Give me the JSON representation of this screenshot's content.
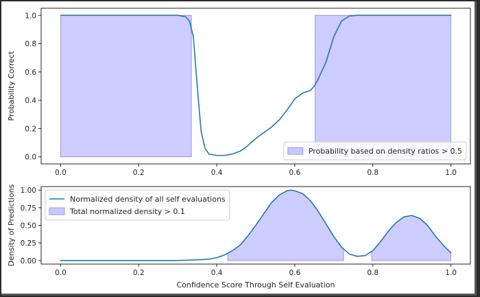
{
  "chart_data": [
    {
      "type": "line",
      "ylabel": "Probability Correct",
      "xlim": [
        -0.05,
        1.05
      ],
      "ylim": [
        -0.05,
        1.05
      ],
      "x_ticks": [
        0.0,
        0.2,
        0.4,
        0.6,
        0.8,
        1.0
      ],
      "x_tick_labels": [
        "0.0",
        "0.2",
        "0.4",
        "0.6",
        "0.8",
        "1.0"
      ],
      "y_ticks": [
        0.0,
        0.2,
        0.4,
        0.6,
        0.8,
        1.0
      ],
      "y_tick_labels": [
        "0.0",
        "0.2",
        "0.4",
        "0.6",
        "0.8",
        "1.0"
      ],
      "legend": {
        "position": "lower-right",
        "entries": [
          {
            "label": "Probability based on density ratios > 0.5",
            "kind": "fill"
          }
        ]
      },
      "series": [
        {
          "name": "Probability correct",
          "color": "#1f77b4",
          "x": [
            0.0,
            0.05,
            0.1,
            0.15,
            0.2,
            0.25,
            0.3,
            0.32,
            0.33,
            0.34,
            0.35,
            0.36,
            0.37,
            0.38,
            0.4,
            0.42,
            0.44,
            0.46,
            0.48,
            0.5,
            0.52,
            0.54,
            0.56,
            0.58,
            0.6,
            0.62,
            0.64,
            0.65,
            0.66,
            0.68,
            0.7,
            0.72,
            0.74,
            0.76,
            0.8,
            0.9,
            1.0
          ],
          "y": [
            1.0,
            1.0,
            1.0,
            1.0,
            1.0,
            1.0,
            1.0,
            0.99,
            0.96,
            0.85,
            0.5,
            0.18,
            0.06,
            0.02,
            0.01,
            0.01,
            0.02,
            0.04,
            0.08,
            0.13,
            0.17,
            0.21,
            0.26,
            0.33,
            0.41,
            0.45,
            0.47,
            0.5,
            0.55,
            0.67,
            0.85,
            0.96,
            0.995,
            1.0,
            1.0,
            1.0,
            1.0
          ]
        }
      ],
      "fills": [
        {
          "name": "Probability based on density ratios > 0.5",
          "color": "#c8c8ff",
          "x_ranges": [
            [
              0.0,
              0.335
            ],
            [
              0.652,
              1.0
            ]
          ]
        }
      ]
    },
    {
      "type": "line",
      "xlabel": "Confidence Score Through Self Evaluation",
      "ylabel": "Density of Predictions",
      "xlim": [
        -0.05,
        1.05
      ],
      "ylim": [
        -0.05,
        1.05
      ],
      "x_ticks": [
        0.0,
        0.2,
        0.4,
        0.6,
        0.8,
        1.0
      ],
      "x_tick_labels": [
        "0.0",
        "0.2",
        "0.4",
        "0.6",
        "0.8",
        "1.0"
      ],
      "y_ticks": [
        0.0,
        0.25,
        0.5,
        0.75,
        1.0
      ],
      "y_tick_labels": [
        "0.00",
        "0.25",
        "0.50",
        "0.75",
        "1.00"
      ],
      "legend": {
        "position": "top-left",
        "entries": [
          {
            "label": "Normalized density of all self evaluations",
            "kind": "line"
          },
          {
            "label": "Total normalized density > 0.1",
            "kind": "fill"
          }
        ]
      },
      "series": [
        {
          "name": "Normalized density of all self evaluations",
          "color": "#1f77b4",
          "x": [
            0.0,
            0.1,
            0.2,
            0.3,
            0.35,
            0.38,
            0.4,
            0.42,
            0.44,
            0.46,
            0.48,
            0.5,
            0.52,
            0.54,
            0.56,
            0.58,
            0.59,
            0.6,
            0.62,
            0.64,
            0.66,
            0.68,
            0.7,
            0.72,
            0.74,
            0.76,
            0.78,
            0.8,
            0.82,
            0.84,
            0.86,
            0.88,
            0.9,
            0.92,
            0.94,
            0.96,
            0.98,
            1.0
          ],
          "y": [
            0.0,
            0.0,
            0.0,
            0.0,
            0.01,
            0.02,
            0.04,
            0.08,
            0.14,
            0.22,
            0.35,
            0.5,
            0.66,
            0.82,
            0.93,
            0.99,
            1.0,
            0.99,
            0.95,
            0.85,
            0.7,
            0.52,
            0.34,
            0.19,
            0.09,
            0.06,
            0.07,
            0.14,
            0.27,
            0.42,
            0.54,
            0.62,
            0.64,
            0.6,
            0.5,
            0.35,
            0.22,
            0.11
          ]
        }
      ],
      "fills": [
        {
          "name": "Total normalized density > 0.1",
          "color": "#c8c8ff",
          "x_ranges": [
            [
              0.428,
              0.725
            ],
            [
              0.797,
              1.0
            ]
          ]
        }
      ]
    }
  ]
}
